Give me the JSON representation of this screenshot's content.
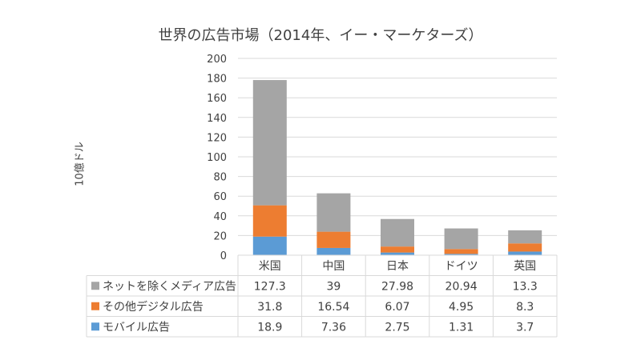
{
  "chart_data": {
    "type": "bar",
    "stacked": true,
    "title": "世界の広告市場（2014年、イー・マーケターズ）",
    "ylabel": "10億ドル",
    "xlabel": "",
    "ylim": [
      0,
      200
    ],
    "yticks": [
      0,
      20,
      40,
      60,
      80,
      100,
      120,
      140,
      160,
      180,
      200
    ],
    "categories": [
      "米国",
      "中国",
      "日本",
      "ドイツ",
      "英国"
    ],
    "series": [
      {
        "name": "モバイル広告",
        "color": "#5b9bd5",
        "values": [
          18.9,
          7.36,
          2.75,
          1.31,
          3.7
        ],
        "labels": [
          "18.9",
          "7.36",
          "2.75",
          "1.31",
          "3.7"
        ]
      },
      {
        "name": "その他デジタル広告",
        "color": "#ed7d31",
        "values": [
          31.8,
          16.54,
          6.07,
          4.95,
          8.3
        ],
        "labels": [
          "31.8",
          "16.54",
          "6.07",
          "4.95",
          "8.3"
        ]
      },
      {
        "name": "ネットを除くメディア広告",
        "color": "#a5a5a5",
        "values": [
          127.3,
          39,
          27.98,
          20.94,
          13.3
        ],
        "labels": [
          "127.3",
          "39",
          "27.98",
          "20.94",
          "13.3"
        ]
      }
    ],
    "table_row_order": [
      "ネットを除くメディア広告",
      "その他デジタル広告",
      "モバイル広告"
    ],
    "grid": true,
    "legend": "data-table"
  }
}
